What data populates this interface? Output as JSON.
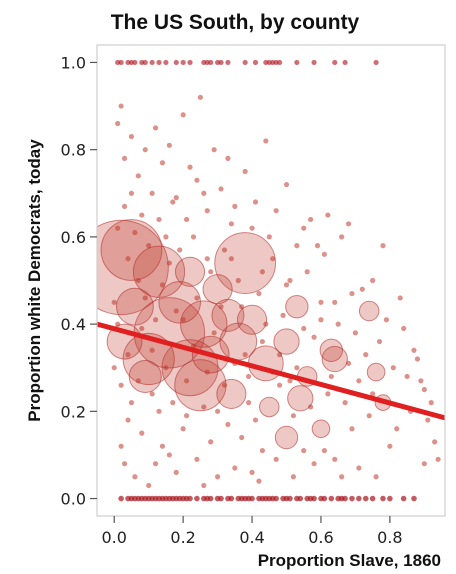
{
  "chart_data": {
    "type": "scatter",
    "title": "The US South, by county",
    "xlabel": "Proportion Slave, 1860",
    "ylabel": "Proportion white Democrats, today",
    "xlim": [
      -0.05,
      0.96
    ],
    "ylim": [
      -0.04,
      1.04
    ],
    "x_ticks": [
      0.0,
      0.2,
      0.4,
      0.6,
      0.8
    ],
    "x_tick_labels": [
      "0.0",
      "0.2",
      "0.4",
      "0.6",
      "0.8"
    ],
    "y_ticks": [
      0.0,
      0.2,
      0.4,
      0.6,
      0.8,
      1.0
    ],
    "y_tick_labels": [
      "0.0",
      "0.2",
      "0.4",
      "0.6",
      "0.8",
      "1.0"
    ],
    "grid": false,
    "legend": "none",
    "point_color": "#c0392b",
    "line_color": "#e02020",
    "trend_line": {
      "x": [
        -0.05,
        0.96
      ],
      "y": [
        0.4,
        0.185
      ]
    },
    "large_points": [
      {
        "x": 0.02,
        "y": 0.53,
        "r": 0.9
      },
      {
        "x": 0.05,
        "y": 0.57,
        "r": 0.55
      },
      {
        "x": 0.13,
        "y": 0.52,
        "r": 0.45
      },
      {
        "x": 0.38,
        "y": 0.54,
        "r": 0.55
      },
      {
        "x": 0.16,
        "y": 0.38,
        "r": 0.65
      },
      {
        "x": 0.1,
        "y": 0.32,
        "r": 0.45
      },
      {
        "x": 0.22,
        "y": 0.3,
        "r": 0.5
      },
      {
        "x": 0.26,
        "y": 0.4,
        "r": 0.4
      },
      {
        "x": 0.19,
        "y": 0.45,
        "r": 0.35
      },
      {
        "x": 0.36,
        "y": 0.36,
        "r": 0.3
      },
      {
        "x": 0.25,
        "y": 0.26,
        "r": 0.45
      },
      {
        "x": 0.33,
        "y": 0.42,
        "r": 0.25
      },
      {
        "x": 0.44,
        "y": 0.31,
        "r": 0.28
      },
      {
        "x": 0.4,
        "y": 0.41,
        "r": 0.22
      },
      {
        "x": 0.28,
        "y": 0.33,
        "r": 0.3
      },
      {
        "x": 0.5,
        "y": 0.36,
        "r": 0.18
      },
      {
        "x": 0.53,
        "y": 0.44,
        "r": 0.15
      },
      {
        "x": 0.63,
        "y": 0.34,
        "r": 0.15
      },
      {
        "x": 0.64,
        "y": 0.32,
        "r": 0.18
      },
      {
        "x": 0.74,
        "y": 0.43,
        "r": 0.12
      },
      {
        "x": 0.54,
        "y": 0.23,
        "r": 0.18
      },
      {
        "x": 0.5,
        "y": 0.14,
        "r": 0.15
      },
      {
        "x": 0.06,
        "y": 0.44,
        "r": 0.3
      },
      {
        "x": 0.03,
        "y": 0.36,
        "r": 0.28
      },
      {
        "x": 0.3,
        "y": 0.48,
        "r": 0.22
      },
      {
        "x": 0.45,
        "y": 0.21,
        "r": 0.12
      },
      {
        "x": 0.22,
        "y": 0.52,
        "r": 0.22
      },
      {
        "x": 0.09,
        "y": 0.28,
        "r": 0.25
      },
      {
        "x": 0.34,
        "y": 0.24,
        "r": 0.22
      },
      {
        "x": 0.76,
        "y": 0.29,
        "r": 0.1
      },
      {
        "x": 0.78,
        "y": 0.22,
        "r": 0.08
      },
      {
        "x": 0.6,
        "y": 0.16,
        "r": 0.1
      },
      {
        "x": 0.56,
        "y": 0.28,
        "r": 0.12
      }
    ],
    "zero_row": [
      0.02,
      0.04,
      0.05,
      0.06,
      0.07,
      0.08,
      0.09,
      0.1,
      0.11,
      0.12,
      0.13,
      0.14,
      0.15,
      0.16,
      0.17,
      0.18,
      0.19,
      0.2,
      0.21,
      0.22,
      0.24,
      0.26,
      0.27,
      0.28,
      0.3,
      0.31,
      0.33,
      0.34,
      0.36,
      0.37,
      0.38,
      0.39,
      0.4,
      0.42,
      0.43,
      0.44,
      0.45,
      0.46,
      0.47,
      0.49,
      0.5,
      0.51,
      0.53,
      0.54,
      0.56,
      0.57,
      0.58,
      0.6,
      0.61,
      0.63,
      0.65,
      0.66,
      0.67,
      0.69,
      0.71,
      0.73,
      0.75,
      0.78,
      0.8,
      0.84,
      0.87
    ],
    "one_row": [
      0.01,
      0.02,
      0.04,
      0.05,
      0.06,
      0.08,
      0.09,
      0.11,
      0.13,
      0.15,
      0.18,
      0.2,
      0.22,
      0.26,
      0.27,
      0.28,
      0.3,
      0.31,
      0.33,
      0.38,
      0.41,
      0.44,
      0.45,
      0.46,
      0.47,
      0.48,
      0.53,
      0.58,
      0.64,
      0.67,
      0.76
    ],
    "small_points": [
      [
        0.01,
        0.86
      ],
      [
        0.02,
        0.9
      ],
      [
        0.03,
        0.78
      ],
      [
        0.05,
        0.83
      ],
      [
        0.07,
        0.74
      ],
      [
        0.09,
        0.8
      ],
      [
        0.11,
        0.7
      ],
      [
        0.12,
        0.85
      ],
      [
        0.14,
        0.77
      ],
      [
        0.16,
        0.81
      ],
      [
        0.18,
        0.69
      ],
      [
        0.2,
        0.88
      ],
      [
        0.22,
        0.76
      ],
      [
        0.24,
        0.73
      ],
      [
        0.25,
        0.92
      ],
      [
        0.27,
        0.66
      ],
      [
        0.29,
        0.8
      ],
      [
        0.31,
        0.71
      ],
      [
        0.33,
        0.78
      ],
      [
        0.34,
        0.63
      ],
      [
        0.38,
        0.75
      ],
      [
        0.41,
        0.68
      ],
      [
        0.44,
        0.82
      ],
      [
        0.47,
        0.66
      ],
      [
        0.5,
        0.72
      ],
      [
        0.55,
        0.62
      ],
      [
        0.59,
        0.58
      ],
      [
        0.62,
        0.65
      ],
      [
        0.66,
        0.6
      ],
      [
        0.68,
        0.63
      ],
      [
        0.72,
        0.48
      ],
      [
        0.78,
        0.58
      ],
      [
        0.84,
        0.39
      ],
      [
        0.87,
        0.34
      ],
      [
        0.89,
        0.27
      ],
      [
        0.92,
        0.22
      ],
      [
        0.93,
        0.13
      ],
      [
        0.8,
        0.12
      ],
      [
        0.71,
        0.07
      ],
      [
        0.66,
        0.05
      ],
      [
        0.58,
        0.08
      ],
      [
        0.52,
        0.05
      ],
      [
        0.47,
        0.09
      ],
      [
        0.42,
        0.04
      ],
      [
        0.35,
        0.07
      ],
      [
        0.3,
        0.05
      ],
      [
        0.24,
        0.09
      ],
      [
        0.18,
        0.06
      ],
      [
        0.12,
        0.08
      ],
      [
        0.06,
        0.05
      ],
      [
        0.02,
        0.12
      ],
      [
        0.04,
        0.18
      ],
      [
        0.08,
        0.15
      ],
      [
        0.14,
        0.12
      ],
      [
        0.2,
        0.16
      ],
      [
        0.28,
        0.13
      ],
      [
        0.37,
        0.14
      ],
      [
        0.43,
        0.11
      ],
      [
        0.61,
        0.11
      ],
      [
        0.69,
        0.16
      ],
      [
        0.74,
        0.19
      ],
      [
        0.82,
        0.16
      ],
      [
        0.86,
        0.2
      ],
      [
        0.9,
        0.08
      ],
      [
        0.0,
        0.45
      ],
      [
        0.01,
        0.62
      ],
      [
        0.03,
        0.67
      ],
      [
        0.06,
        0.61
      ],
      [
        0.1,
        0.58
      ],
      [
        0.15,
        0.6
      ],
      [
        0.19,
        0.57
      ],
      [
        0.23,
        0.6
      ],
      [
        0.27,
        0.55
      ],
      [
        0.32,
        0.57
      ],
      [
        0.36,
        0.5
      ],
      [
        0.42,
        0.47
      ],
      [
        0.46,
        0.55
      ],
      [
        0.5,
        0.49
      ],
      [
        0.56,
        0.52
      ],
      [
        0.6,
        0.45
      ],
      [
        0.65,
        0.4
      ],
      [
        0.7,
        0.38
      ],
      [
        0.73,
        0.33
      ],
      [
        0.77,
        0.36
      ],
      [
        0.81,
        0.3
      ],
      [
        0.85,
        0.28
      ],
      [
        0.88,
        0.32
      ],
      [
        0.91,
        0.18
      ],
      [
        0.05,
        0.22
      ],
      [
        0.07,
        0.27
      ],
      [
        0.11,
        0.24
      ],
      [
        0.13,
        0.2
      ],
      [
        0.17,
        0.22
      ],
      [
        0.21,
        0.19
      ],
      [
        0.26,
        0.21
      ],
      [
        0.3,
        0.2
      ],
      [
        0.33,
        0.17
      ],
      [
        0.39,
        0.22
      ],
      [
        0.41,
        0.18
      ],
      [
        0.48,
        0.26
      ],
      [
        0.52,
        0.19
      ],
      [
        0.57,
        0.21
      ],
      [
        0.62,
        0.24
      ],
      [
        0.67,
        0.22
      ],
      [
        0.71,
        0.27
      ],
      [
        0.75,
        0.24
      ],
      [
        0.0,
        0.3
      ],
      [
        0.02,
        0.26
      ],
      [
        0.04,
        0.33
      ],
      [
        0.08,
        0.39
      ],
      [
        0.12,
        0.41
      ],
      [
        0.18,
        0.43
      ],
      [
        0.23,
        0.35
      ],
      [
        0.29,
        0.38
      ],
      [
        0.35,
        0.31
      ],
      [
        0.39,
        0.28
      ],
      [
        0.43,
        0.36
      ],
      [
        0.48,
        0.33
      ],
      [
        0.53,
        0.3
      ],
      [
        0.58,
        0.37
      ],
      [
        0.63,
        0.28
      ],
      [
        0.68,
        0.31
      ],
      [
        0.01,
        0.4
      ],
      [
        0.09,
        0.46
      ],
      [
        0.14,
        0.49
      ],
      [
        0.2,
        0.41
      ],
      [
        0.24,
        0.46
      ],
      [
        0.31,
        0.44
      ],
      [
        0.37,
        0.44
      ],
      [
        0.44,
        0.4
      ],
      [
        0.49,
        0.42
      ],
      [
        0.55,
        0.39
      ],
      [
        0.6,
        0.41
      ],
      [
        0.64,
        0.45
      ],
      [
        0.69,
        0.47
      ],
      [
        0.79,
        0.41
      ],
      [
        0.83,
        0.46
      ],
      [
        0.9,
        0.25
      ],
      [
        0.94,
        0.09
      ],
      [
        0.11,
        0.34
      ],
      [
        0.15,
        0.3
      ],
      [
        0.21,
        0.27
      ],
      [
        0.27,
        0.29
      ],
      [
        0.32,
        0.26
      ],
      [
        0.38,
        0.33
      ],
      [
        0.46,
        0.29
      ],
      [
        0.51,
        0.27
      ],
      [
        0.03,
        0.08
      ],
      [
        0.1,
        0.03
      ],
      [
        0.16,
        0.1
      ],
      [
        0.26,
        0.03
      ],
      [
        0.4,
        0.06
      ],
      [
        0.55,
        0.11
      ],
      [
        0.64,
        0.09
      ],
      [
        0.76,
        0.05
      ],
      [
        0.05,
        0.7
      ],
      [
        0.08,
        0.65
      ],
      [
        0.13,
        0.64
      ],
      [
        0.17,
        0.68
      ],
      [
        0.21,
        0.64
      ],
      [
        0.26,
        0.7
      ],
      [
        0.35,
        0.67
      ],
      [
        0.4,
        0.62
      ],
      [
        0.45,
        0.6
      ],
      [
        0.53,
        0.58
      ],
      [
        0.57,
        0.64
      ],
      [
        0.61,
        0.56
      ],
      [
        0.04,
        0.55
      ],
      [
        0.07,
        0.5
      ],
      [
        0.16,
        0.54
      ],
      [
        0.28,
        0.52
      ],
      [
        0.34,
        0.55
      ],
      [
        0.43,
        0.52
      ],
      [
        0.51,
        0.5
      ],
      [
        0.75,
        0.5
      ]
    ]
  }
}
